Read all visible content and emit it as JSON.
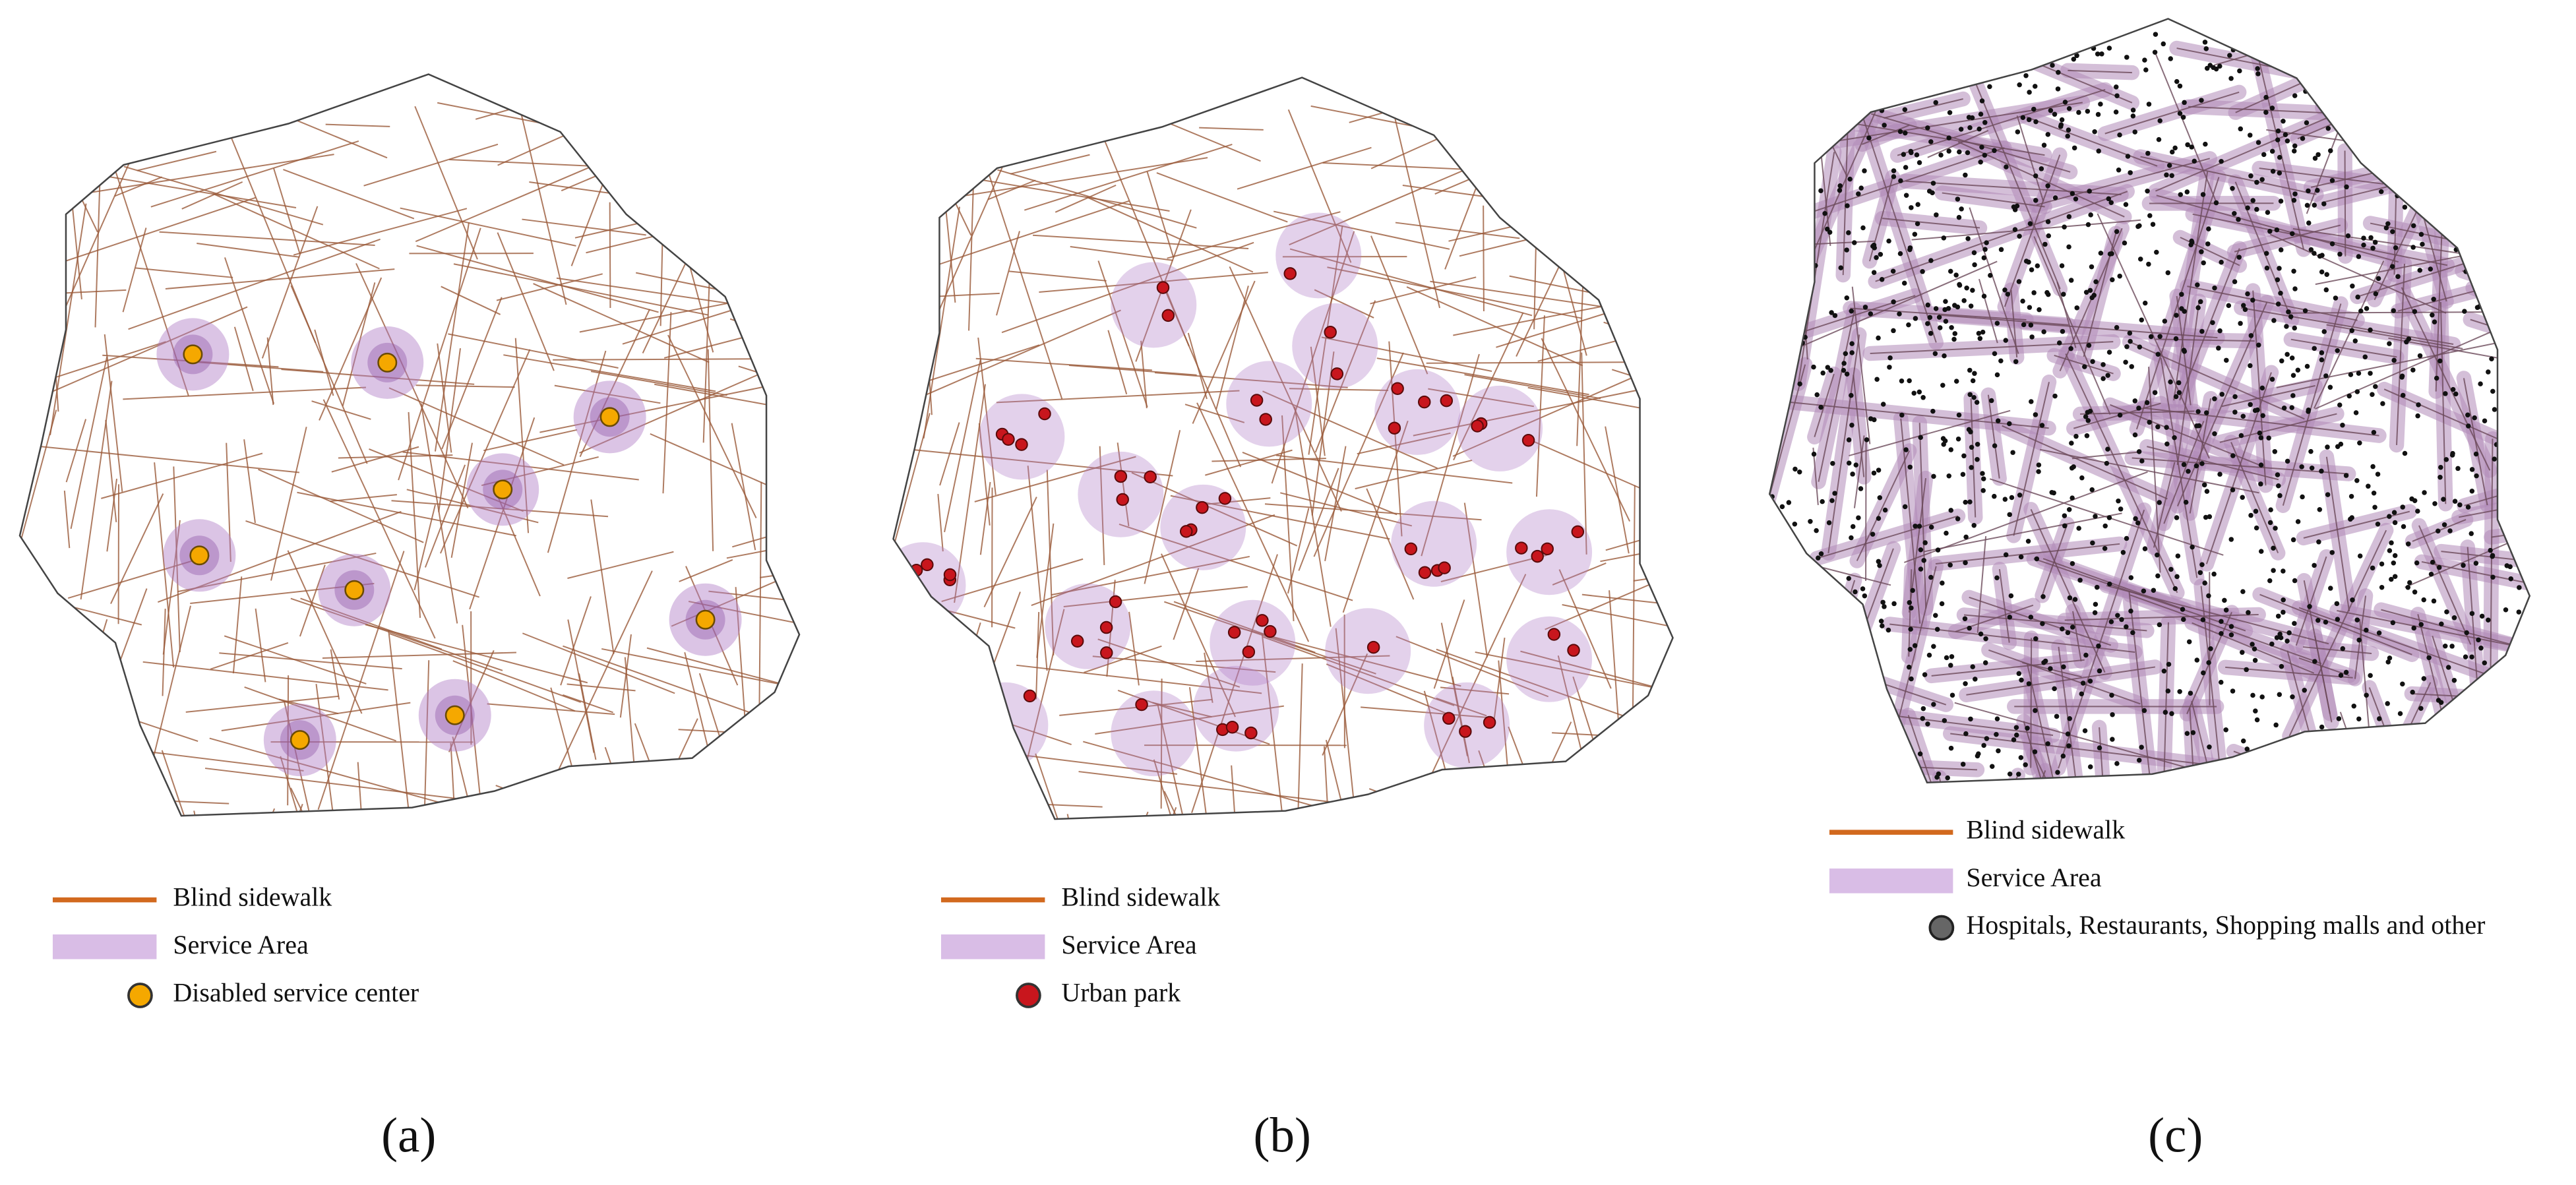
{
  "panels": [
    {
      "label": "(a)",
      "legend": [
        "Blind sidewalk",
        "Service Area",
        "Disabled service center"
      ]
    },
    {
      "label": "(b)",
      "legend": [
        "Blind sidewalk",
        "Service Area",
        "Urban park"
      ]
    },
    {
      "label": "(c)",
      "legend": [
        "Blind sidewalk",
        "Service Area",
        "Hospitals, Restaurants, Shopping malls and other"
      ]
    }
  ]
}
